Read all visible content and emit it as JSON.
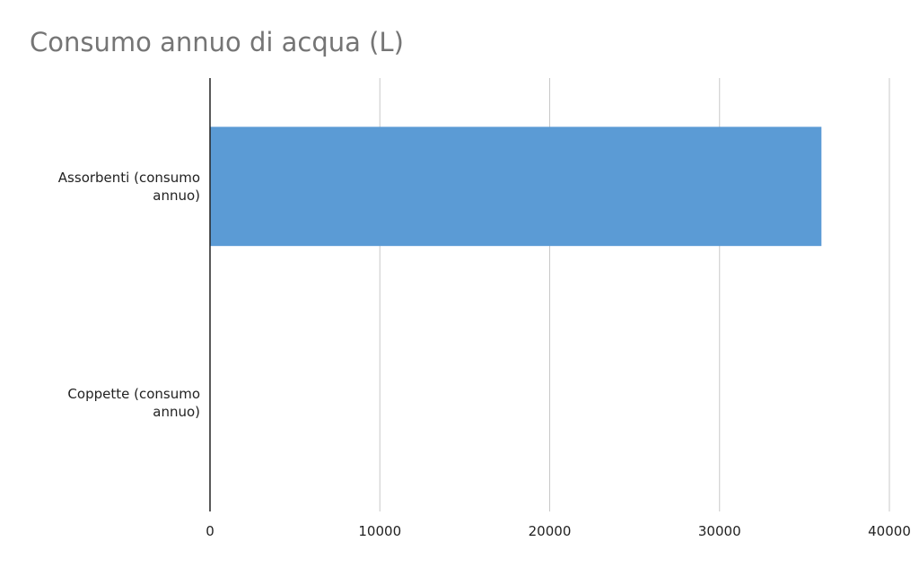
{
  "chart_data": {
    "type": "bar",
    "orientation": "horizontal",
    "title": "Consumo annuo di acqua (L)",
    "categories": [
      "Assorbenti (consumo annuo)",
      "Coppette (consumo annuo)"
    ],
    "category_lines": [
      [
        "Assorbenti (consumo",
        "annuo)"
      ],
      [
        "Coppette (consumo",
        "annuo)"
      ]
    ],
    "values": [
      36000,
      0
    ],
    "xlim": [
      0,
      40000
    ],
    "xticks": [
      0,
      10000,
      20000,
      30000,
      40000
    ],
    "xtick_labels": [
      "0",
      "10000",
      "20000",
      "30000",
      "40000"
    ],
    "grid": true,
    "legend": "none",
    "bar_color": "#5b9bd5"
  }
}
